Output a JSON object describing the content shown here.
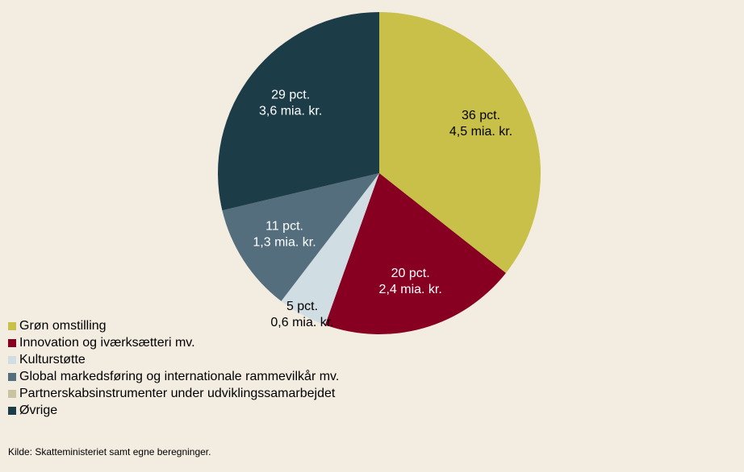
{
  "chart_data": {
    "type": "pie",
    "categories": [
      "Grøn omstilling",
      "Innovation og iværksætteri mv.",
      "Kulturstøtte",
      "Global markedsføring og internationale rammevilkår mv.",
      "Partnerskabsinstrumenter under udviklingssamarbejdet",
      "Øvrige"
    ],
    "values": [
      36,
      20,
      5,
      11,
      0,
      29
    ],
    "value_labels": [
      "36 pct.",
      "20 pct.",
      "5 pct.",
      "11 pct.",
      null,
      "29 pct."
    ],
    "amount_labels": [
      "4,5 mia. kr.",
      "2,4 mia. kr.",
      "0,6 mia. kr.",
      "1,3 mia. kr.",
      null,
      "3,6 mia. kr."
    ],
    "colors": [
      "#c8c048",
      "#870021",
      "#d0dde3",
      "#546e7d",
      "#c8c3a0",
      "#1c3c48"
    ],
    "legend": "bottom-left",
    "source": "Kilde: Skatteministeriet samt egne beregninger."
  }
}
